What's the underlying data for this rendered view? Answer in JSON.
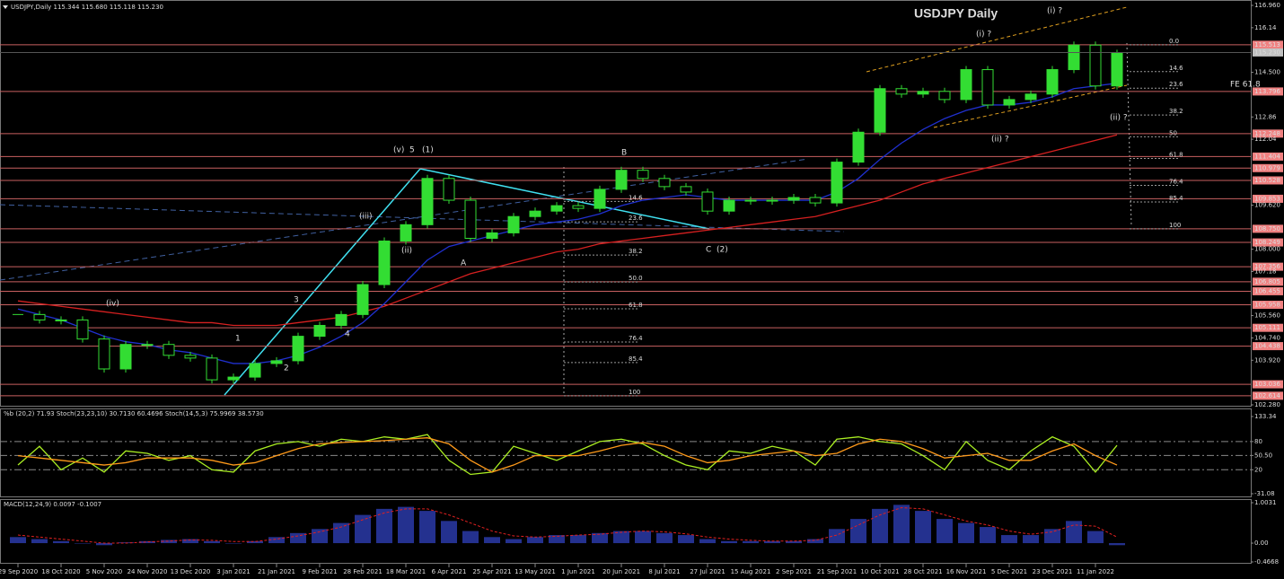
{
  "chart_data": [
    {
      "type": "candlestick",
      "header": "USDJPY,Daily 115.344 115.680 115.118 115.230",
      "title": "USDJPY Daily",
      "title_color": "#3a7dd0",
      "categories": [
        "29 Sep 2020",
        null,
        "18 Oct 2020",
        null,
        "5 Nov 2020",
        null,
        "24 Nov 2020",
        null,
        "13 Dec 2020",
        null,
        "3 Jan 2021",
        null,
        "21 Jan 2021",
        null,
        "9 Feb 2021",
        null,
        "28 Feb 2021",
        null,
        "18 Mar 2021",
        null,
        "6 Apr 2021",
        null,
        "25 Apr 2021",
        null,
        "13 May 2021",
        null,
        "1 Jun 2021",
        null,
        "20 Jun 2021",
        null,
        "8 Jul 2021",
        null,
        "27 Jul 2021",
        null,
        "15 Aug 2021",
        null,
        "2 Sep 2021",
        null,
        "21 Sep 2021",
        null,
        "10 Oct 2021",
        null,
        "28 Oct 2021",
        null,
        "16 Nov 2021",
        null,
        "5 Dec 2021",
        null,
        "23 Dec 2021",
        null,
        "11 Jan 2022",
        null
      ],
      "series": [
        {
          "color": "#33dd33",
          "values": [
            105.6,
            105.4,
            105.4,
            104.7,
            103.6,
            104.5,
            104.5,
            104.1,
            104.0,
            103.2,
            103.3,
            103.8,
            103.9,
            104.8,
            105.2,
            105.6,
            106.7,
            108.3,
            108.9,
            110.6,
            109.8,
            108.4,
            108.6,
            109.2,
            109.4,
            109.6,
            109.5,
            110.2,
            110.9,
            110.6,
            110.3,
            110.1,
            109.4,
            109.8,
            109.8,
            109.8,
            109.9,
            109.7,
            111.2,
            112.3,
            113.9,
            113.7,
            113.8,
            113.5,
            114.6,
            113.3,
            113.5,
            113.7,
            114.6,
            115.5,
            114.0,
            115.2
          ]
        },
        {
          "color": "#d62020",
          "values": [
            106.1,
            106.0,
            105.9,
            105.8,
            105.7,
            105.6,
            105.5,
            105.4,
            105.3,
            105.3,
            105.2,
            105.2,
            105.2,
            105.3,
            105.4,
            105.5,
            105.7,
            105.9,
            106.2,
            106.5,
            106.8,
            107.1,
            107.3,
            107.5,
            107.7,
            107.9,
            108.0,
            108.2,
            108.3,
            108.4,
            108.5,
            108.6,
            108.7,
            108.8,
            108.9,
            109.0,
            109.1,
            109.2,
            109.4,
            109.6,
            109.8,
            110.1,
            110.4,
            110.6,
            110.8,
            111.0,
            111.2,
            111.4,
            111.6,
            111.8,
            112.0,
            112.2
          ]
        },
        {
          "color": "#2030d0",
          "values": [
            105.8,
            105.6,
            105.4,
            105.1,
            104.8,
            104.6,
            104.5,
            104.3,
            104.2,
            104.0,
            103.8,
            103.8,
            103.9,
            104.1,
            104.4,
            104.8,
            105.3,
            106.0,
            106.8,
            107.6,
            108.1,
            108.3,
            108.5,
            108.7,
            108.9,
            109.0,
            109.1,
            109.3,
            109.6,
            109.8,
            109.9,
            110.0,
            109.9,
            109.8,
            109.8,
            109.8,
            109.8,
            109.8,
            110.1,
            110.6,
            111.3,
            111.9,
            112.4,
            112.8,
            113.1,
            113.3,
            113.3,
            113.4,
            113.6,
            113.9,
            114.0,
            114.1
          ]
        }
      ],
      "ylim": [
        102.28,
        116.96
      ],
      "yticks": [
        {
          "value": 116.96,
          "label": "116.960"
        },
        116.14,
        {
          "value": 114.5,
          "label": "114.500"
        },
        112.86,
        112.04,
        {
          "value": 109.62,
          "label": "109.620"
        },
        {
          "value": 108.0,
          "label": "108.000"
        },
        107.18,
        {
          "value": 105.56,
          "label": "105.560"
        },
        {
          "value": 104.74,
          "label": "104.740"
        },
        {
          "value": 103.92,
          "label": "103.920"
        },
        {
          "value": 102.28,
          "label": "102.280"
        }
      ],
      "levels": [
        115.513,
        113.796,
        112.248,
        111.404,
        110.979,
        110.528,
        109.853,
        {
          "value": 108.75,
          "label": "108.750"
        },
        108.249,
        107.356,
        106.805,
        106.455,
        105.958,
        105.111,
        104.438,
        103.036,
        102.614
      ],
      "level_color": "#c86060",
      "last_price": {
        "value": 115.23,
        "label": "115.230"
      },
      "fib_left": [
        14.6,
        23.6,
        38.2,
        {
          "value": 50,
          "label": "50.0"
        },
        61.8,
        76.4,
        85.4,
        100
      ],
      "fib_right": [
        {
          "value": 0,
          "label": "0.0"
        },
        14.6,
        23.6,
        38.2,
        50,
        61.8,
        76.4,
        85.4,
        100
      ],
      "annotations": [
        {
          "text": "(iv)",
          "color": "#22cc22"
        },
        {
          "text": "1",
          "color": "#e03030"
        },
        {
          "text": "2",
          "color": "#e03030"
        },
        {
          "text": "3",
          "color": "#e03030"
        },
        {
          "text": "4",
          "color": "#e03030"
        },
        {
          "text": "(ii)",
          "color": "#22cc22"
        },
        {
          "text": "(iii)",
          "color": "#22cc22"
        },
        {
          "text": "(v)",
          "color": "#22cc22"
        },
        {
          "text": "5",
          "color": "#e03030"
        },
        {
          "text": "(1)",
          "color": "#5aa0ff"
        },
        {
          "text": "A",
          "color": "#e03030"
        },
        {
          "text": "B",
          "color": "#e03030"
        },
        {
          "text": "C",
          "color": "#e03030"
        },
        {
          "text": "(2)",
          "color": "#5aa0ff"
        },
        {
          "text": "(i) ?",
          "color": "#22cc22"
        },
        {
          "text": "(ii) ?",
          "color": "#22cc22"
        },
        {
          "text": "(i) ?",
          "color": "#22cc22"
        },
        {
          "text": "(ii) ?",
          "color": "#22cc22"
        },
        {
          "text": "FE 61.8",
          "color": "#3a7dd0"
        }
      ]
    },
    {
      "type": "line",
      "title": "%b (20,2) 71.93  Stoch(23,23,10) 30.7130 60.4696  Stoch(14,5,3) 75.9969 38.5730",
      "series": [
        {
          "color": "#aaee22",
          "values": [
            30,
            70,
            20,
            45,
            15,
            60,
            55,
            40,
            50,
            20,
            15,
            60,
            75,
            80,
            70,
            85,
            80,
            90,
            85,
            95,
            40,
            10,
            15,
            70,
            55,
            40,
            60,
            80,
            85,
            75,
            50,
            30,
            20,
            60,
            55,
            70,
            60,
            30,
            85,
            90,
            80,
            75,
            50,
            20,
            80,
            40,
            20,
            60,
            90,
            70,
            15,
            72
          ]
        },
        {
          "color": "#ff9a1a",
          "values": [
            50,
            45,
            40,
            35,
            30,
            35,
            45,
            45,
            45,
            40,
            30,
            35,
            50,
            65,
            75,
            78,
            80,
            82,
            85,
            88,
            75,
            40,
            15,
            30,
            50,
            50,
            50,
            60,
            72,
            78,
            70,
            50,
            35,
            40,
            50,
            55,
            60,
            50,
            55,
            75,
            85,
            80,
            65,
            45,
            50,
            55,
            40,
            40,
            60,
            75,
            50,
            30
          ]
        }
      ],
      "ylim": [
        -31.08,
        133.34
      ],
      "yticks": [
        133.34,
        80,
        {
          "value": 50.5,
          "label": "50.50"
        },
        20,
        -31.08
      ]
    },
    {
      "type": "bar",
      "title": "MACD(12,24,9) 0.0097 -0.1007",
      "series": [
        {
          "color": "#2a3aa8",
          "values": [
            0.15,
            0.1,
            0.05,
            0.0,
            -0.05,
            0.02,
            0.05,
            0.08,
            0.1,
            0.05,
            0.0,
            0.05,
            0.15,
            0.25,
            0.35,
            0.5,
            0.7,
            0.85,
            0.9,
            0.8,
            0.55,
            0.3,
            0.15,
            0.1,
            0.15,
            0.2,
            0.2,
            0.25,
            0.3,
            0.3,
            0.25,
            0.2,
            0.1,
            0.05,
            0.05,
            0.05,
            0.05,
            0.1,
            0.35,
            0.6,
            0.85,
            0.95,
            0.8,
            0.6,
            0.5,
            0.4,
            0.2,
            0.2,
            0.35,
            0.55,
            0.3,
            -0.05
          ]
        },
        {
          "color": "#e02020",
          "values": [
            0.2,
            0.15,
            0.1,
            0.05,
            0.0,
            0.0,
            0.03,
            0.05,
            0.08,
            0.07,
            0.04,
            0.04,
            0.1,
            0.18,
            0.28,
            0.4,
            0.58,
            0.75,
            0.85,
            0.85,
            0.7,
            0.5,
            0.3,
            0.18,
            0.15,
            0.17,
            0.2,
            0.22,
            0.27,
            0.3,
            0.28,
            0.23,
            0.15,
            0.1,
            0.07,
            0.05,
            0.05,
            0.07,
            0.2,
            0.45,
            0.7,
            0.88,
            0.85,
            0.7,
            0.55,
            0.45,
            0.3,
            0.22,
            0.28,
            0.45,
            0.42,
            0.15
          ]
        }
      ],
      "ylim": [
        -0.4668,
        1.0031
      ],
      "yticks": [
        1.0031,
        {
          "value": 0,
          "label": "0.00"
        },
        -0.4668
      ]
    }
  ]
}
